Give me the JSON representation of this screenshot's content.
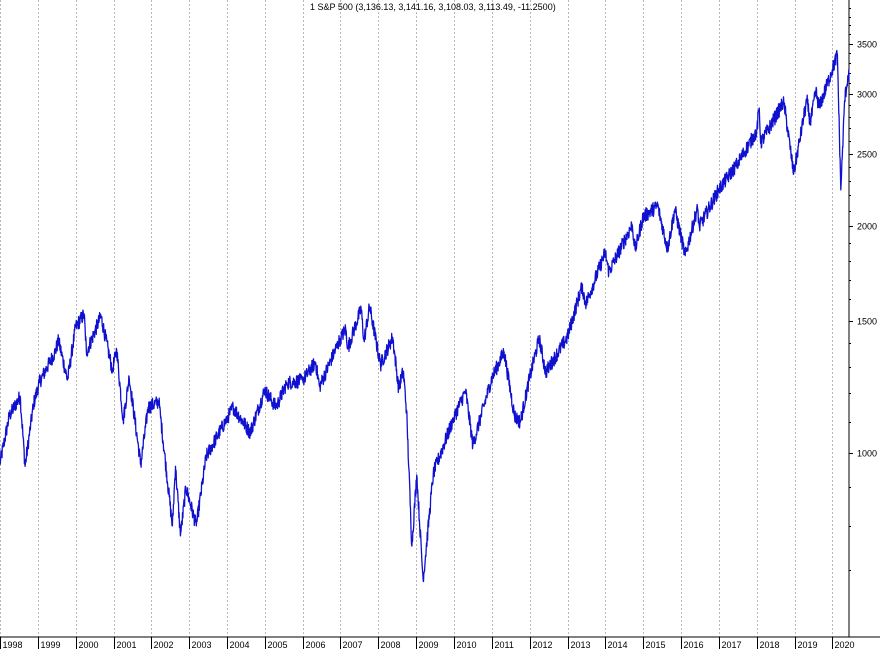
{
  "chart_data": {
    "type": "line",
    "title": "1 S&P 500 (3,136.13, 3,141.16, 3,108.03, 3,113.49, -11.2500)",
    "xlabel": "",
    "ylabel": "",
    "y_scale": "log",
    "ylim": [
      600,
      4000
    ],
    "xlim": [
      "1998-01-01",
      "2020-06-10"
    ],
    "grid": {
      "vertical": true,
      "horizontal": false,
      "style": "dotted"
    },
    "y_ticks": [
      1000,
      1500,
      2000,
      2500,
      3000,
      3500
    ],
    "y_tick_labels": [
      "1000",
      "1500",
      "2000",
      "2500",
      "3000",
      "3500"
    ],
    "x_ticks": [
      "1998-01-01",
      "1999-01-01",
      "2000-01-01",
      "2001-01-01",
      "2002-01-01",
      "2003-01-01",
      "2004-01-01",
      "2005-01-01",
      "2006-01-01",
      "2007-01-01",
      "2008-01-01",
      "2009-01-01",
      "2010-01-01",
      "2011-01-01",
      "2012-01-01",
      "2013-01-01",
      "2014-01-01",
      "2015-01-01",
      "2016-01-01",
      "2017-01-01",
      "2018-01-01",
      "2019-01-01",
      "2020-01-01"
    ],
    "x_tick_labels": [
      "1998",
      "1999",
      "2000",
      "2001",
      "2002",
      "2003",
      "2004",
      "2005",
      "2006",
      "2007",
      "2008",
      "2009",
      "2010",
      "2011",
      "2012",
      "2013",
      "2014",
      "2015",
      "2016",
      "2017",
      "2018",
      "2019",
      "2020"
    ],
    "colors": {
      "line": "#1010d0",
      "grid": "#b8b8b8",
      "axis": "#000000"
    },
    "series": [
      {
        "x": [
          "1998-01-01",
          "1998-04-01",
          "1998-07-15",
          "1998-08-31",
          "1998-11-20",
          "1999-01-15",
          "1999-04-01",
          "1999-06-15",
          "1999-07-20",
          "1999-10-15",
          "2000-01-01",
          "2000-03-24",
          "2000-04-14",
          "2000-09-01",
          "2000-12-20",
          "2001-02-01",
          "2001-04-04",
          "2001-06-01",
          "2001-09-21",
          "2001-12-01",
          "2002-03-15",
          "2002-07-23",
          "2002-08-22",
          "2002-10-09",
          "2002-12-01",
          "2003-03-11",
          "2003-06-15",
          "2003-12-31",
          "2004-03-01",
          "2004-08-12",
          "2004-12-31",
          "2005-04-20",
          "2005-08-01",
          "2005-12-31",
          "2006-05-05",
          "2006-06-13",
          "2006-12-31",
          "2007-02-20",
          "2007-03-14",
          "2007-07-19",
          "2007-08-16",
          "2007-10-09",
          "2008-01-22",
          "2008-05-19",
          "2008-07-15",
          "2008-08-29",
          "2008-09-30",
          "2008-11-20",
          "2009-01-06",
          "2009-03-09",
          "2009-06-15",
          "2009-12-31",
          "2010-04-23",
          "2010-07-02",
          "2010-12-31",
          "2011-04-29",
          "2011-08-08",
          "2011-10-03",
          "2011-12-31",
          "2012-04-02",
          "2012-06-04",
          "2012-12-31",
          "2013-05-21",
          "2013-06-24",
          "2013-12-31",
          "2014-02-03",
          "2014-09-18",
          "2014-10-15",
          "2014-12-31",
          "2015-05-21",
          "2015-08-24",
          "2015-11-03",
          "2016-02-11",
          "2016-06-08",
          "2016-06-27",
          "2016-12-31",
          "2017-06-30",
          "2017-12-31",
          "2018-01-26",
          "2018-02-08",
          "2018-09-20",
          "2018-12-24",
          "2019-04-30",
          "2019-06-03",
          "2019-07-26",
          "2019-08-27",
          "2019-12-31",
          "2020-02-19",
          "2020-03-23",
          "2020-04-29",
          "2020-06-08",
          "2020-06-10"
        ],
        "y": [
          970,
          1120,
          1190,
          960,
          1160,
          1240,
          1300,
          1360,
          1410,
          1250,
          1470,
          1530,
          1360,
          1520,
          1290,
          1370,
          1105,
          1260,
          965,
          1150,
          1170,
          800,
          960,
          776,
          900,
          800,
          990,
          1110,
          1150,
          1065,
          1212,
          1150,
          1240,
          1248,
          1320,
          1225,
          1420,
          1460,
          1380,
          1555,
          1410,
          1565,
          1310,
          1425,
          1220,
          1285,
          1140,
          752,
          935,
          677,
          940,
          1115,
          1210,
          1025,
          1257,
          1363,
          1120,
          1099,
          1258,
          1420,
          1280,
          1426,
          1669,
          1575,
          1848,
          1740,
          2010,
          1862,
          2059,
          2130,
          1867,
          2109,
          1829,
          2120,
          2000,
          2238,
          2425,
          2674,
          2873,
          2581,
          2930,
          2351,
          2946,
          2744,
          3025,
          2878,
          3230,
          3386,
          2237,
          2940,
          3232,
          3113
        ]
      }
    ]
  }
}
